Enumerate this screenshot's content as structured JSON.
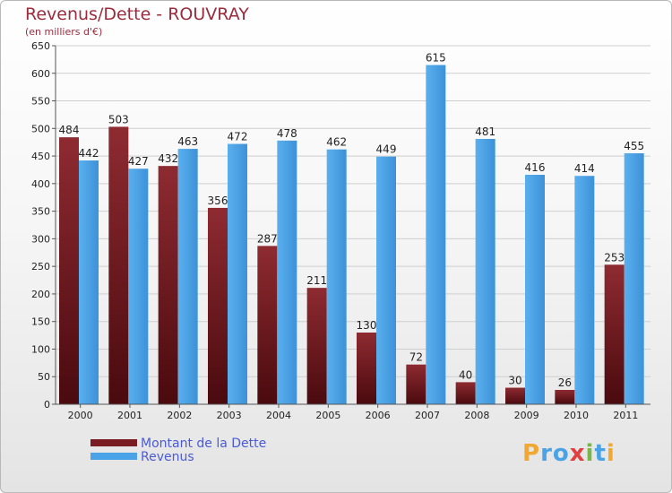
{
  "header": {
    "title": "Revenus/Dette - ROUVRAY",
    "subtitle": "(en milliers d'€)"
  },
  "legend": {
    "items": [
      {
        "label": "Montant de la Dette",
        "color": "#7a1d22"
      },
      {
        "label": "Revenus",
        "color": "#4aa3e6"
      }
    ]
  },
  "logo": {
    "text": "Proxiti",
    "letters": [
      {
        "ch": "P",
        "color": "#f0a830"
      },
      {
        "ch": "r",
        "color": "#4aa3e6"
      },
      {
        "ch": "o",
        "color": "#4aa3e6"
      },
      {
        "ch": "x",
        "color": "#e04040"
      },
      {
        "ch": "i",
        "color": "#7ab648"
      },
      {
        "ch": "t",
        "color": "#4aa3e6"
      },
      {
        "ch": "i",
        "color": "#f0a830"
      }
    ]
  },
  "chart_data": {
    "type": "bar",
    "categories": [
      "2000",
      "2001",
      "2002",
      "2003",
      "2004",
      "2005",
      "2006",
      "2007",
      "2008",
      "2009",
      "2010",
      "2011"
    ],
    "series": [
      {
        "name": "Montant de la Dette",
        "color": "#7a1d22",
        "values": [
          484,
          503,
          432,
          356,
          287,
          211,
          130,
          72,
          40,
          30,
          26,
          253
        ]
      },
      {
        "name": "Revenus",
        "color": "#4aa3e6",
        "values": [
          442,
          427,
          463,
          472,
          478,
          462,
          449,
          615,
          481,
          416,
          414,
          455
        ]
      }
    ],
    "ylim": [
      0,
      650
    ],
    "yticks": [
      0,
      50,
      100,
      150,
      200,
      250,
      300,
      350,
      400,
      450,
      500,
      550,
      600,
      650
    ],
    "grid": true,
    "legend_position": "bottom-left"
  }
}
